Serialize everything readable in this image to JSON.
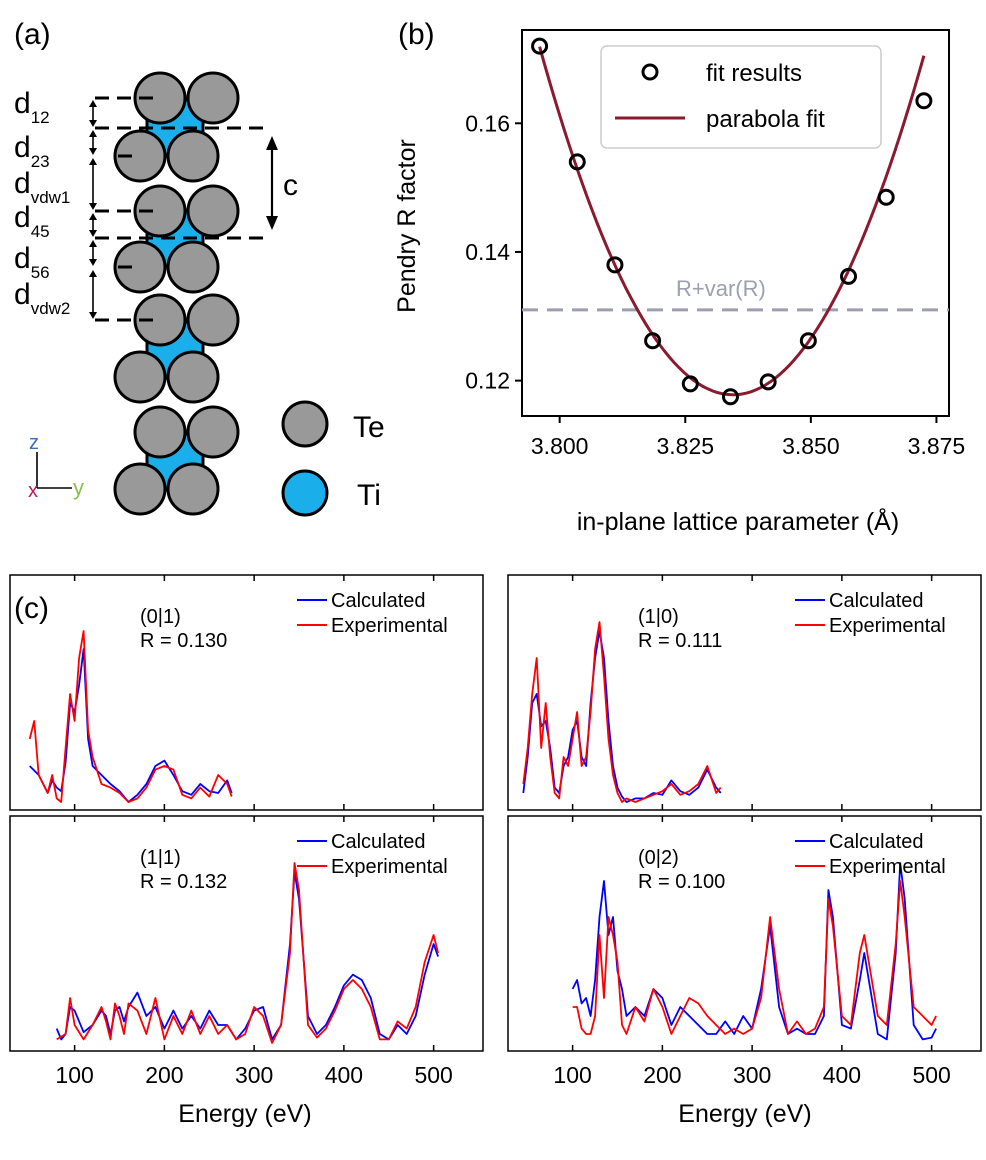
{
  "panel_labels": {
    "a": "(a)",
    "b": "(b)",
    "c": "(c)"
  },
  "structure": {
    "distances": [
      {
        "base": "d",
        "sub": "12"
      },
      {
        "base": "d",
        "sub": "23"
      },
      {
        "base": "d",
        "sub": "vdw1"
      },
      {
        "base": "d",
        "sub": "45"
      },
      {
        "base": "d",
        "sub": "56"
      },
      {
        "base": "d",
        "sub": "vdw2"
      }
    ],
    "c_label": "c",
    "axes": {
      "z": "z",
      "x": "x",
      "y": "y"
    },
    "legend": [
      {
        "label": "Te",
        "color": "#999999"
      },
      {
        "label": "Ti",
        "color": "#1aafea"
      }
    ],
    "colors": {
      "te": "#999999",
      "ti": "#1aafea",
      "axis_z": "#3b6fb5",
      "axis_x": "#c2185b",
      "axis_y": "#8bc34a"
    }
  },
  "chart_data": [
    {
      "type": "scatter",
      "xlabel": "in-plane lattice parameter (Å)",
      "ylabel": "Pendry R factor",
      "xlim": [
        3.7925,
        3.8775
      ],
      "ylim": [
        0.1145,
        0.1745
      ],
      "xticks": [
        "3.800",
        "3.825",
        "3.850",
        "3.875"
      ],
      "yticks": [
        "0.12",
        "0.14",
        "0.16"
      ],
      "series": [
        {
          "name": "fit results",
          "kind": "points",
          "x": [
            3.796,
            3.8035,
            3.811,
            3.8185,
            3.826,
            3.834,
            3.8415,
            3.8495,
            3.8575,
            3.865,
            3.8725
          ],
          "y": [
            0.172,
            0.154,
            0.138,
            0.1262,
            0.1195,
            0.1175,
            0.1198,
            0.1262,
            0.1362,
            0.1485,
            0.1635
          ]
        },
        {
          "name": "parabola fit",
          "kind": "curve",
          "color": "#8b1a2e",
          "vertex": [
            3.8345,
            0.1178
          ],
          "curvature": 36.5,
          "xrange": [
            3.796,
            3.8725
          ]
        }
      ],
      "reference_line": {
        "y": 0.131,
        "label": "R+var(R)",
        "color": "#9e9eb1"
      },
      "legend_position": "top-right"
    },
    {
      "type": "line",
      "beam": "(0|1)",
      "r_label": "R = 0.130",
      "xlim": [
        28,
        555
      ],
      "series": [
        {
          "name": "Calculated",
          "color": "#0000ff",
          "x": [
            50,
            60,
            70,
            75,
            80,
            85,
            90,
            95,
            100,
            105,
            110,
            115,
            120,
            130,
            140,
            150,
            160,
            170,
            180,
            190,
            200,
            210,
            220,
            230,
            240,
            250,
            260,
            270,
            275
          ],
          "y": [
            0.2,
            0.15,
            0.05,
            0.12,
            0.08,
            0.06,
            0.22,
            0.55,
            0.5,
            0.65,
            0.85,
            0.35,
            0.2,
            0.15,
            0.1,
            0.06,
            0.0,
            0.04,
            0.1,
            0.2,
            0.23,
            0.15,
            0.06,
            0.04,
            0.1,
            0.06,
            0.05,
            0.12,
            0.05
          ]
        },
        {
          "name": "Experimental",
          "color": "#ff0000",
          "x": [
            50,
            55,
            60,
            70,
            75,
            80,
            85,
            90,
            95,
            100,
            105,
            110,
            115,
            120,
            130,
            140,
            150,
            160,
            170,
            180,
            190,
            200,
            210,
            220,
            230,
            240,
            250,
            260,
            270,
            275
          ],
          "y": [
            0.35,
            0.45,
            0.15,
            0.05,
            0.15,
            0.02,
            0.0,
            0.3,
            0.6,
            0.45,
            0.8,
            0.95,
            0.4,
            0.25,
            0.1,
            0.08,
            0.05,
            0.0,
            0.02,
            0.08,
            0.18,
            0.2,
            0.18,
            0.04,
            0.02,
            0.08,
            0.03,
            0.15,
            0.1,
            0.03
          ]
        }
      ]
    },
    {
      "type": "line",
      "beam": "(1|0)",
      "r_label": "R = 0.111",
      "xlim": [
        28,
        555
      ],
      "series": [
        {
          "name": "Calculated",
          "color": "#0000ff",
          "x": [
            45,
            50,
            55,
            60,
            65,
            70,
            75,
            80,
            85,
            90,
            95,
            100,
            105,
            110,
            115,
            120,
            125,
            130,
            135,
            140,
            145,
            150,
            155,
            160,
            170,
            180,
            190,
            200,
            210,
            220,
            230,
            240,
            250,
            260,
            265
          ],
          "y": [
            0.05,
            0.25,
            0.55,
            0.6,
            0.42,
            0.45,
            0.3,
            0.08,
            0.05,
            0.2,
            0.25,
            0.4,
            0.45,
            0.25,
            0.2,
            0.55,
            0.8,
            0.95,
            0.8,
            0.45,
            0.2,
            0.08,
            0.03,
            0.0,
            0.02,
            0.02,
            0.05,
            0.04,
            0.12,
            0.06,
            0.04,
            0.08,
            0.18,
            0.08,
            0.05
          ]
        },
        {
          "name": "Experimental",
          "color": "#ff0000",
          "x": [
            45,
            50,
            55,
            60,
            65,
            70,
            75,
            80,
            85,
            90,
            95,
            100,
            105,
            110,
            115,
            120,
            125,
            130,
            135,
            140,
            145,
            150,
            155,
            160,
            170,
            180,
            190,
            200,
            210,
            220,
            230,
            240,
            250,
            260,
            265
          ],
          "y": [
            0.1,
            0.3,
            0.6,
            0.8,
            0.3,
            0.55,
            0.25,
            0.05,
            0.02,
            0.25,
            0.2,
            0.35,
            0.5,
            0.2,
            0.25,
            0.5,
            0.85,
            1.0,
            0.7,
            0.35,
            0.15,
            0.05,
            0.0,
            0.02,
            0.0,
            0.02,
            0.04,
            0.06,
            0.1,
            0.04,
            0.06,
            0.1,
            0.2,
            0.05,
            0.08
          ]
        }
      ]
    },
    {
      "type": "line",
      "beam": "(1|1)",
      "r_label": "R = 0.132",
      "xlim": [
        28,
        555
      ],
      "series": [
        {
          "name": "Calculated",
          "color": "#0000ff",
          "x": [
            80,
            85,
            90,
            95,
            100,
            110,
            120,
            130,
            135,
            140,
            145,
            150,
            155,
            160,
            170,
            180,
            190,
            200,
            210,
            220,
            230,
            240,
            250,
            260,
            270,
            280,
            290,
            300,
            310,
            320,
            330,
            340,
            345,
            350,
            360,
            370,
            380,
            390,
            400,
            410,
            420,
            430,
            440,
            450,
            460,
            470,
            480,
            490,
            500,
            505
          ],
          "y": [
            0.08,
            0.02,
            0.05,
            0.2,
            0.18,
            0.06,
            0.1,
            0.18,
            0.15,
            0.05,
            0.18,
            0.2,
            0.12,
            0.2,
            0.28,
            0.15,
            0.2,
            0.08,
            0.18,
            0.08,
            0.15,
            0.08,
            0.18,
            0.1,
            0.1,
            0.02,
            0.08,
            0.18,
            0.2,
            0.02,
            0.1,
            0.55,
            0.95,
            0.8,
            0.15,
            0.05,
            0.1,
            0.2,
            0.32,
            0.38,
            0.35,
            0.25,
            0.05,
            0.02,
            0.1,
            0.05,
            0.15,
            0.38,
            0.55,
            0.48
          ]
        },
        {
          "name": "Experimental",
          "color": "#ff0000",
          "x": [
            80,
            90,
            95,
            100,
            110,
            120,
            130,
            135,
            140,
            145,
            150,
            155,
            160,
            170,
            180,
            190,
            200,
            210,
            220,
            230,
            240,
            250,
            260,
            270,
            280,
            290,
            300,
            310,
            320,
            330,
            340,
            345,
            350,
            360,
            370,
            380,
            390,
            400,
            410,
            420,
            430,
            440,
            450,
            460,
            470,
            480,
            490,
            500,
            505
          ],
          "y": [
            0.02,
            0.05,
            0.25,
            0.1,
            0.02,
            0.1,
            0.2,
            0.12,
            0.02,
            0.22,
            0.15,
            0.05,
            0.22,
            0.18,
            0.05,
            0.25,
            0.02,
            0.15,
            0.05,
            0.18,
            0.05,
            0.15,
            0.05,
            0.1,
            0.02,
            0.05,
            0.2,
            0.15,
            0.0,
            0.1,
            0.5,
            1.0,
            0.85,
            0.1,
            0.03,
            0.08,
            0.18,
            0.3,
            0.35,
            0.3,
            0.2,
            0.02,
            0.02,
            0.12,
            0.08,
            0.2,
            0.45,
            0.6,
            0.5
          ]
        }
      ]
    },
    {
      "type": "line",
      "beam": "(0|2)",
      "r_label": "R = 0.100",
      "xlim": [
        28,
        555
      ],
      "series": [
        {
          "name": "Calculated",
          "color": "#0000ff",
          "x": [
            100,
            105,
            110,
            115,
            120,
            125,
            130,
            135,
            140,
            145,
            150,
            155,
            160,
            170,
            180,
            190,
            200,
            210,
            220,
            230,
            240,
            250,
            260,
            270,
            280,
            290,
            300,
            310,
            320,
            330,
            340,
            350,
            360,
            370,
            380,
            385,
            390,
            400,
            410,
            420,
            425,
            430,
            440,
            450,
            460,
            465,
            470,
            480,
            490,
            500,
            505
          ],
          "y": [
            0.3,
            0.35,
            0.22,
            0.25,
            0.15,
            0.35,
            0.7,
            0.9,
            0.6,
            0.7,
            0.4,
            0.3,
            0.15,
            0.2,
            0.15,
            0.3,
            0.25,
            0.1,
            0.2,
            0.15,
            0.1,
            0.05,
            0.05,
            0.12,
            0.05,
            0.15,
            0.08,
            0.3,
            0.65,
            0.2,
            0.05,
            0.08,
            0.05,
            0.05,
            0.15,
            0.85,
            0.7,
            0.1,
            0.08,
            0.35,
            0.5,
            0.35,
            0.05,
            0.02,
            0.5,
            1.0,
            0.8,
            0.1,
            0.02,
            0.03,
            0.08
          ]
        },
        {
          "name": "Experimental",
          "color": "#ff0000",
          "x": [
            100,
            105,
            110,
            115,
            120,
            125,
            130,
            135,
            140,
            145,
            150,
            155,
            160,
            170,
            180,
            190,
            200,
            210,
            220,
            230,
            240,
            250,
            260,
            270,
            280,
            290,
            300,
            310,
            320,
            330,
            340,
            350,
            360,
            370,
            380,
            385,
            390,
            400,
            410,
            420,
            425,
            430,
            440,
            450,
            460,
            465,
            470,
            480,
            490,
            500,
            505
          ],
          "y": [
            0.2,
            0.2,
            0.08,
            0.05,
            0.05,
            0.15,
            0.6,
            0.25,
            0.7,
            0.6,
            0.45,
            0.1,
            0.05,
            0.2,
            0.12,
            0.3,
            0.2,
            0.05,
            0.15,
            0.25,
            0.22,
            0.15,
            0.1,
            0.05,
            0.08,
            0.05,
            0.08,
            0.25,
            0.7,
            0.3,
            0.05,
            0.12,
            0.05,
            0.08,
            0.2,
            0.8,
            0.65,
            0.15,
            0.1,
            0.5,
            0.6,
            0.45,
            0.15,
            0.1,
            0.55,
            0.9,
            0.7,
            0.2,
            0.15,
            0.1,
            0.15
          ]
        }
      ]
    }
  ],
  "spectra_axes": {
    "xticks": [
      "100",
      "200",
      "300",
      "400",
      "500"
    ],
    "xlabel": "Energy (eV)"
  }
}
